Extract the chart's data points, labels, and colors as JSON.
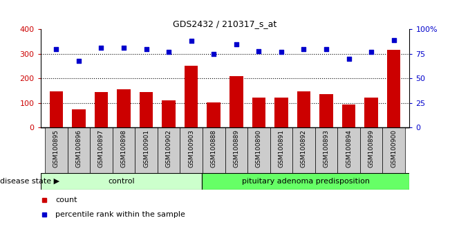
{
  "title": "GDS2432 / 210317_s_at",
  "categories": [
    "GSM100895",
    "GSM100896",
    "GSM100897",
    "GSM100898",
    "GSM100901",
    "GSM100902",
    "GSM100903",
    "GSM100888",
    "GSM100889",
    "GSM100890",
    "GSM100891",
    "GSM100892",
    "GSM100893",
    "GSM100894",
    "GSM100899",
    "GSM100900"
  ],
  "bar_values": [
    148,
    75,
    143,
    155,
    145,
    110,
    253,
    102,
    210,
    123,
    122,
    147,
    137,
    93,
    122,
    318
  ],
  "scatter_values": [
    80,
    68,
    81,
    81,
    80,
    77,
    88,
    75,
    85,
    78,
    77,
    80,
    80,
    70,
    77,
    89
  ],
  "bar_color": "#cc0000",
  "scatter_color": "#0000cc",
  "bar_ylim": [
    0,
    400
  ],
  "bar_yticks": [
    0,
    100,
    200,
    300,
    400
  ],
  "scatter_ylim": [
    0,
    100
  ],
  "scatter_yticks": [
    0,
    25,
    50,
    75,
    100
  ],
  "scatter_yticklabels": [
    "0",
    "25",
    "50",
    "75",
    "100%"
  ],
  "grid_lines": [
    100,
    200,
    300
  ],
  "control_count": 7,
  "control_label": "control",
  "disease_label": "pituitary adenoma predisposition",
  "disease_state_label": "disease state",
  "legend_bar_label": "count",
  "legend_scatter_label": "percentile rank within the sample",
  "control_color": "#ccffcc",
  "disease_color": "#66ff66",
  "bar_tick_color": "#cc0000",
  "scatter_tick_color": "#0000cc",
  "tick_box_color": "#cccccc",
  "background_color": "#ffffff"
}
